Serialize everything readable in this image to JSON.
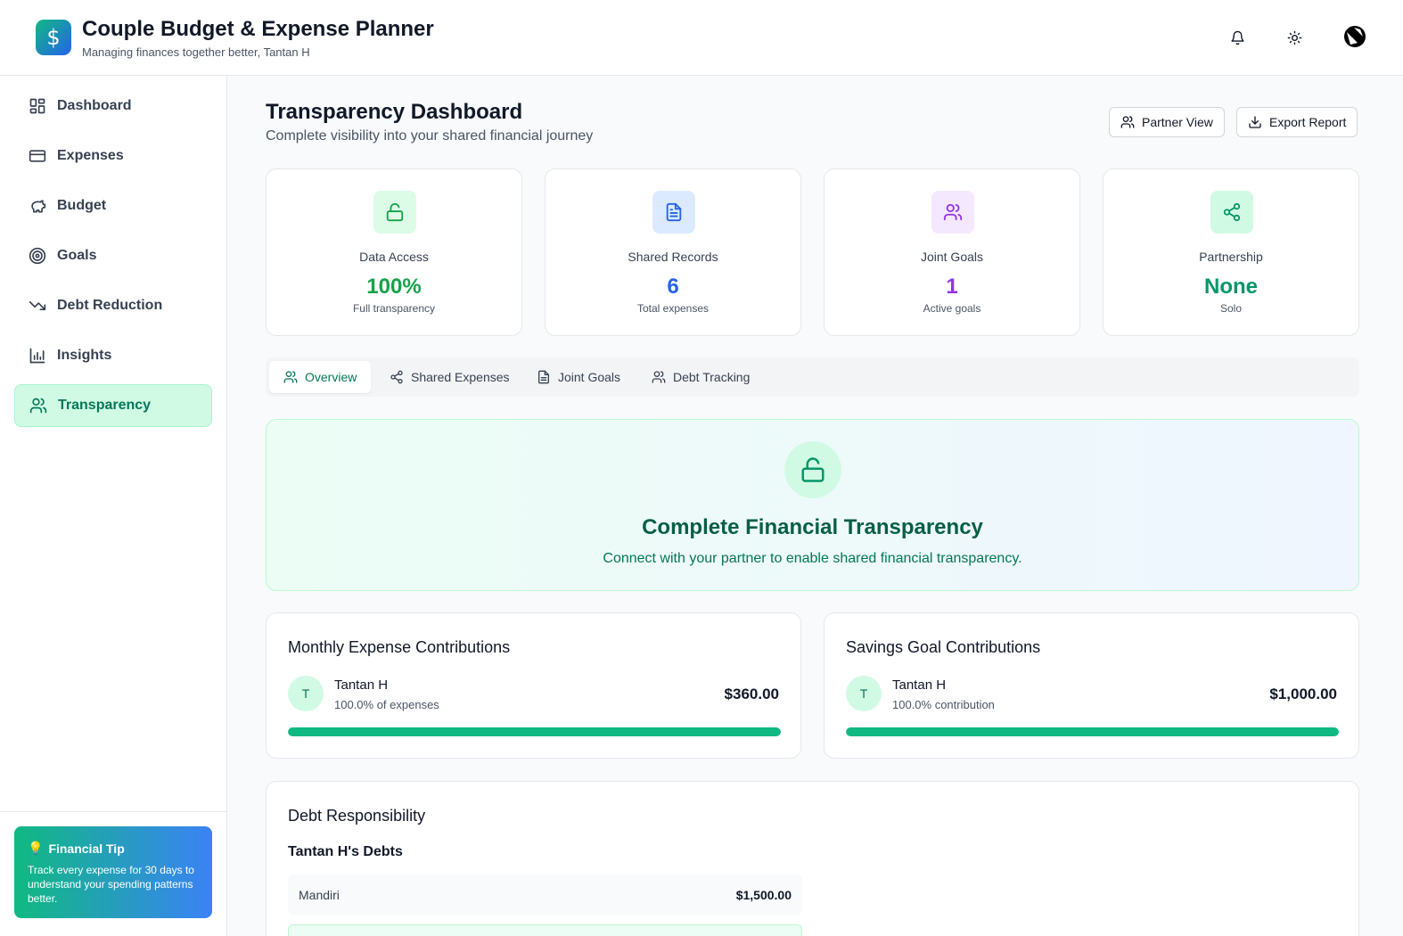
{
  "header": {
    "logo_symbol": "$",
    "title": "Couple Budget & Expense Planner",
    "subtitle": "Managing finances together better, Tantan H",
    "icons": [
      "bell-icon",
      "sun-icon",
      "profile-logo-icon"
    ]
  },
  "sidebar": {
    "items": [
      {
        "label": "Dashboard",
        "icon": "layout-grid-icon"
      },
      {
        "label": "Expenses",
        "icon": "credit-card-icon"
      },
      {
        "label": "Budget",
        "icon": "piggy-bank-icon"
      },
      {
        "label": "Goals",
        "icon": "target-icon"
      },
      {
        "label": "Debt Reduction",
        "icon": "trending-down-icon"
      },
      {
        "label": "Insights",
        "icon": "bar-chart-icon"
      },
      {
        "label": "Transparency",
        "icon": "users-icon",
        "active": true
      }
    ],
    "tip": {
      "icon": "💡",
      "title": "Financial Tip",
      "text": "Track every expense for 30 days to understand your spending patterns better."
    }
  },
  "main": {
    "title": "Transparency Dashboard",
    "subtitle": "Complete visibility into your shared financial journey",
    "actions": {
      "partner_view": "Partner View",
      "export_report": "Export Report"
    },
    "stats": [
      {
        "label": "Data Access",
        "value": "100%",
        "sub": "Full transparency",
        "icon": "unlock-icon",
        "color": "#16a34a",
        "bg": "#dcfce7"
      },
      {
        "label": "Shared Records",
        "value": "6",
        "sub": "Total expenses",
        "icon": "file-text-icon",
        "color": "#2563eb",
        "bg": "#dbeafe"
      },
      {
        "label": "Joint Goals",
        "value": "1",
        "sub": "Active goals",
        "icon": "users-icon",
        "color": "#9333ea",
        "bg": "#f3e8ff"
      },
      {
        "label": "Partnership",
        "value": "None",
        "sub": "Solo",
        "icon": "share-icon",
        "color": "#059669",
        "bg": "#d1fae5"
      }
    ],
    "tabs": [
      {
        "label": "Overview",
        "icon": "users-icon",
        "active": true
      },
      {
        "label": "Shared Expenses",
        "icon": "share-icon"
      },
      {
        "label": "Joint Goals",
        "icon": "file-text-icon"
      },
      {
        "label": "Debt Tracking",
        "icon": "users-icon"
      }
    ],
    "hero": {
      "title": "Complete Financial Transparency",
      "text": "Connect with your partner to enable shared financial transparency."
    },
    "expense_contrib": {
      "title": "Monthly Expense Contributions",
      "initial": "T",
      "name": "Tantan H",
      "pct": "100.0% of expenses",
      "amount": "$360.00",
      "progress": 1.0
    },
    "savings_contrib": {
      "title": "Savings Goal Contributions",
      "initial": "T",
      "name": "Tantan H",
      "pct": "100.0% contribution",
      "amount": "$1,000.00",
      "progress": 1.0
    },
    "debt": {
      "title": "Debt Responsibility",
      "subtitle": "Tantan H's Debts",
      "items": [
        {
          "name": "Mandiri",
          "amount": "$1,500.00"
        }
      ]
    }
  }
}
